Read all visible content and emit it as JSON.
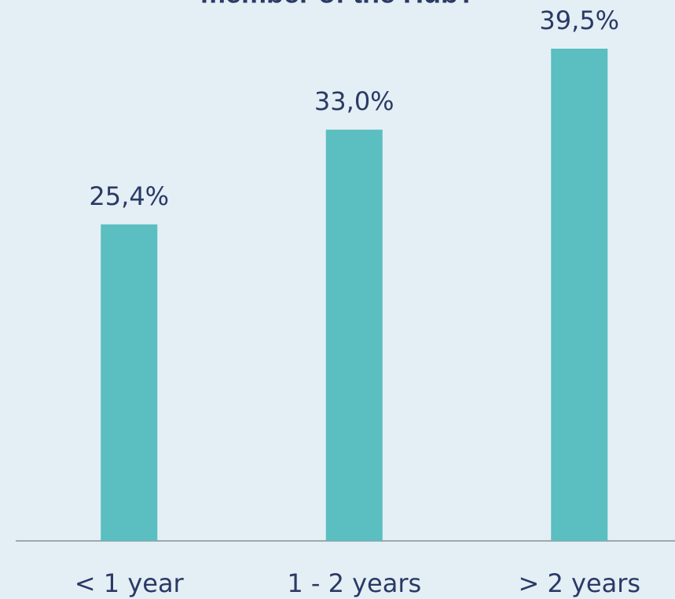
{
  "chart_data": {
    "type": "bar",
    "title": "member of the Hub?",
    "categories": [
      "< 1 year",
      "1 - 2 years",
      "> 2 years"
    ],
    "values": [
      25.4,
      33.0,
      39.5
    ],
    "value_labels": [
      "25,4%",
      "33,0%",
      "39,5%"
    ],
    "color": "#5bbec0"
  }
}
